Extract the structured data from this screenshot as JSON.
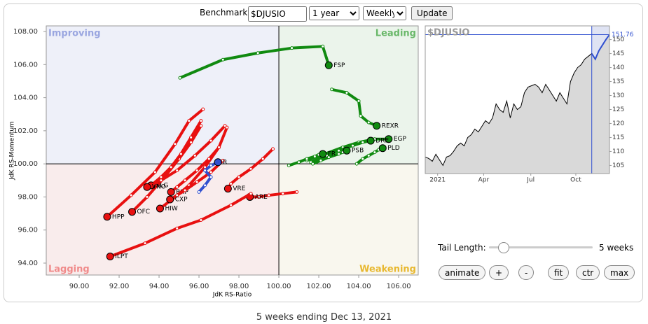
{
  "controls": {
    "benchmark_label": "Benchmark:",
    "benchmark": "$DJUSIO",
    "period": "1 year",
    "frequency": "Weekly",
    "update": "Update",
    "tail_label": "Tail Length:",
    "tail_length": 5,
    "tail_text": "5 weeks",
    "buttons": [
      "animate",
      "+",
      "-",
      "fit",
      "ctr",
      "max"
    ]
  },
  "chart_data": [
    {
      "type": "rrg",
      "x_label": "JdK RS-Ratio",
      "y_label": "JdK RS-Momentum",
      "quadrants": {
        "improving": "Improving",
        "leading": "Leading",
        "lagging": "Lagging",
        "weakening": "Weakening"
      },
      "center": [
        100,
        100
      ],
      "xlim": [
        88.35,
        106.98
      ],
      "ylim": [
        93.28,
        108.34
      ],
      "xticks": [
        {
          "value": 90,
          "label": "90.00"
        },
        {
          "value": 92,
          "label": "92.00"
        },
        {
          "value": 94,
          "label": "94.00"
        },
        {
          "value": 96,
          "label": "96.00"
        },
        {
          "value": 98,
          "label": "98.00"
        },
        {
          "value": 100,
          "label": "100.00"
        },
        {
          "value": 102,
          "label": "102.00"
        },
        {
          "value": 104,
          "label": "104.00"
        },
        {
          "value": 106,
          "label": "106.00"
        }
      ],
      "yticks": [
        {
          "value": 94,
          "label": "94.00"
        },
        {
          "value": 96,
          "label": "96.00"
        },
        {
          "value": 98,
          "label": "98.00"
        },
        {
          "value": 100,
          "label": "100.00"
        },
        {
          "value": 102,
          "label": "102.00"
        },
        {
          "value": 104,
          "label": "104.00"
        },
        {
          "value": 106,
          "label": "106.00"
        },
        {
          "value": 108,
          "label": "108.00"
        }
      ],
      "series": [
        {
          "name": "FSP",
          "color": "#108a10",
          "x": [
            95.05,
            97.2,
            98.95,
            100.65,
            102.2,
            102.5
          ],
          "values": [
            105.2,
            106.3,
            106.7,
            107.0,
            107.1,
            105.96
          ]
        },
        {
          "name": "REXR",
          "color": "#108a10",
          "x": [
            102.65,
            103.4,
            104.0,
            104.1,
            104.5,
            104.9
          ],
          "values": [
            104.5,
            104.3,
            103.8,
            102.9,
            102.5,
            102.3
          ]
        },
        {
          "name": "EGP",
          "color": "#108a10",
          "x": [
            101.4,
            102.3,
            103.2,
            104.0,
            104.8,
            105.5
          ],
          "values": [
            100.2,
            100.6,
            101.0,
            101.3,
            101.5,
            101.5
          ]
        },
        {
          "name": "DRE",
          "color": "#108a10",
          "x": [
            101.6,
            102.4,
            103.0,
            103.7,
            104.2,
            104.6
          ],
          "values": [
            100.1,
            100.5,
            100.8,
            101.1,
            101.3,
            101.4
          ]
        },
        {
          "name": "PLD",
          "color": "#108a10",
          "x": [
            103.9,
            104.2,
            104.5,
            104.8,
            105.0,
            105.2
          ],
          "values": [
            100.0,
            100.3,
            100.5,
            100.7,
            100.85,
            100.95
          ]
        },
        {
          "name": "PSB",
          "color": "#108a10",
          "x": [
            101.7,
            102.1,
            102.5,
            103.0,
            103.2,
            103.4
          ],
          "values": [
            100.0,
            100.2,
            100.4,
            100.6,
            100.7,
            100.8
          ]
        },
        {
          "name": "FR",
          "color": "#108a10",
          "x": [
            100.5,
            101.0,
            101.4,
            101.8,
            102.0,
            102.2
          ],
          "values": [
            99.9,
            100.1,
            100.3,
            100.45,
            100.55,
            100.6
          ]
        },
        {
          "name": "VRE",
          "color": "#e81010",
          "x": [
            99.7,
            99.2,
            98.6,
            98.0,
            97.6,
            97.45
          ],
          "values": [
            100.9,
            100.3,
            99.7,
            99.2,
            98.8,
            98.5
          ]
        },
        {
          "name": "ARE",
          "color": "#e81010",
          "x": [
            100.9,
            100.2,
            99.5,
            99.0,
            98.7,
            98.55
          ],
          "values": [
            98.3,
            98.2,
            98.1,
            98.0,
            98.0,
            98.0
          ]
        },
        {
          "name": "ILPT",
          "color": "#e81010",
          "x": [
            98.6,
            97.6,
            96.1,
            94.9,
            93.3,
            91.55
          ],
          "values": [
            98.2,
            97.5,
            96.6,
            96.1,
            95.2,
            94.4
          ]
        },
        {
          "name": "HPP",
          "color": "#e81010",
          "x": [
            96.2,
            95.5,
            94.8,
            93.8,
            92.6,
            91.4
          ],
          "values": [
            103.3,
            102.6,
            101.2,
            99.5,
            98.1,
            96.8
          ]
        },
        {
          "name": "OFC",
          "color": "#e81010",
          "x": [
            96.1,
            95.6,
            95.0,
            94.2,
            93.4,
            92.65
          ],
          "values": [
            102.3,
            101.3,
            100.3,
            99.1,
            98.0,
            97.1
          ]
        },
        {
          "name": "HIW",
          "color": "#e81010",
          "x": [
            97.4,
            97.0,
            96.3,
            95.5,
            94.7,
            94.05
          ],
          "values": [
            102.2,
            101.0,
            99.8,
            98.7,
            97.9,
            97.3
          ]
        },
        {
          "name": "SLG",
          "color": "#e81010",
          "x": [
            96.1,
            95.6,
            95.1,
            94.6,
            94.1,
            93.6
          ],
          "values": [
            102.6,
            101.6,
            100.6,
            99.8,
            99.2,
            98.7
          ]
        },
        {
          "name": "VNO",
          "color": "#e81010",
          "x": [
            97.3,
            96.6,
            95.8,
            94.9,
            94.1,
            93.4
          ],
          "values": [
            102.3,
            101.4,
            100.5,
            99.6,
            99.0,
            98.6
          ]
        },
        {
          "name": "BXP",
          "color": "#e81010",
          "x": [
            97.0,
            96.5,
            95.9,
            95.3,
            94.9,
            94.6
          ],
          "values": [
            101.0,
            100.3,
            99.6,
            99.0,
            98.6,
            98.3
          ]
        },
        {
          "name": "CXP",
          "color": "#e81010",
          "x": [
            97.2,
            96.6,
            95.9,
            95.3,
            94.9,
            94.55
          ],
          "values": [
            100.2,
            99.5,
            98.9,
            98.4,
            98.1,
            97.85
          ]
        },
        {
          "name": "R",
          "color": "#3050d0",
          "x": [
            96.0,
            96.3,
            96.6,
            96.3,
            96.6,
            96.95
          ],
          "values": [
            98.3,
            98.7,
            99.2,
            99.6,
            99.9,
            100.1
          ]
        }
      ]
    },
    {
      "type": "line",
      "title": "$DJUSIO",
      "color": "#000000",
      "highlight_color": "#3050d0",
      "xlim": [
        0,
        52
      ],
      "ylim": [
        102.1,
        154.9
      ],
      "xticks": [
        {
          "value": 3.5,
          "label": "2021"
        },
        {
          "value": 16.5,
          "label": "Apr"
        },
        {
          "value": 29.8,
          "label": "Jul"
        },
        {
          "value": 42.5,
          "label": "Oct"
        }
      ],
      "yticks": [
        105,
        110,
        115,
        120,
        125,
        130,
        135,
        140,
        145,
        150
      ],
      "values": [
        108,
        107.5,
        106.5,
        109,
        107,
        105,
        108,
        108.5,
        110,
        112,
        113,
        112,
        115,
        116,
        118,
        117,
        119,
        121,
        120,
        122,
        127,
        125,
        124,
        128,
        122,
        127,
        125,
        126,
        131,
        133,
        133.5,
        134,
        133,
        131,
        134,
        132,
        130,
        128,
        131,
        129,
        127,
        135,
        138,
        140,
        141,
        143,
        144,
        145,
        143,
        146,
        148,
        150,
        151.76
      ]
    }
  ],
  "footer": "5 weeks ending Dec 13, 2021"
}
